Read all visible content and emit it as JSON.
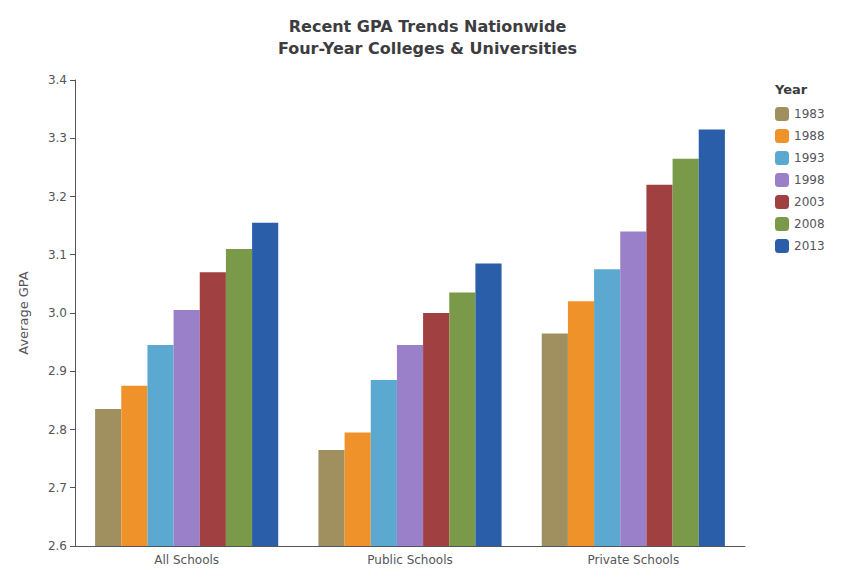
{
  "chart_data": {
    "type": "bar",
    "title": "Recent GPA Trends Nationwide\nFour-Year Colleges & Universities",
    "ylabel": "Average GPA",
    "legend_title": "Year",
    "categories": [
      "All Schools",
      "Public Schools",
      "Private Schools"
    ],
    "series": [
      {
        "name": "1983",
        "color": "#A09060",
        "values": [
          2.835,
          2.765,
          2.965
        ]
      },
      {
        "name": "1988",
        "color": "#F0922A",
        "values": [
          2.875,
          2.795,
          3.02
        ]
      },
      {
        "name": "1993",
        "color": "#5BA8D0",
        "values": [
          2.945,
          2.885,
          3.075
        ]
      },
      {
        "name": "1998",
        "color": "#9980C8",
        "values": [
          3.005,
          2.945,
          3.14
        ]
      },
      {
        "name": "2003",
        "color": "#A04040",
        "values": [
          3.07,
          3.0,
          3.22
        ]
      },
      {
        "name": "2008",
        "color": "#7A9A4A",
        "values": [
          3.11,
          3.035,
          3.265
        ]
      },
      {
        "name": "2013",
        "color": "#2B5EA8",
        "values": [
          3.155,
          3.085,
          3.315
        ]
      }
    ],
    "ylim": [
      2.6,
      3.4
    ],
    "yticks": [
      2.6,
      2.7,
      2.8,
      2.9,
      {
        "value": 3.0,
        "label": "3.0"
      },
      3.1,
      3.2,
      3.3,
      3.4
    ],
    "grid": false,
    "legend": "right"
  }
}
